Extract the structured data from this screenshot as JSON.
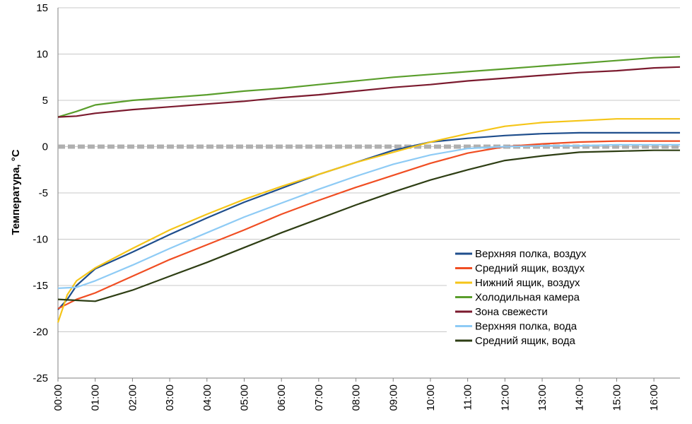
{
  "chart_data": {
    "type": "line",
    "ylabel": "Температура, °C",
    "ylim": [
      -25,
      15
    ],
    "yticks": [
      15,
      10,
      5,
      0,
      -5,
      -10,
      -15,
      -20,
      -25
    ],
    "xlim_hours": [
      0,
      16.7
    ],
    "xticks": [
      "00:00",
      "01:00",
      "02:00",
      "03:00",
      "04:00",
      "05:00",
      "06:00",
      "07:00",
      "08:00",
      "09:00",
      "10:00",
      "11:00",
      "12:00",
      "13:00",
      "14:00",
      "15:00",
      "16:00"
    ],
    "grid": true,
    "legend_position": "lower-right",
    "reference_line": {
      "y": 0,
      "color": "#b0b0b0"
    },
    "series": [
      {
        "name": "Верхняя полка, воздух",
        "color": "#1f4e8c",
        "points": [
          [
            0,
            -17.6
          ],
          [
            0.25,
            -16.5
          ],
          [
            0.5,
            -15
          ],
          [
            1,
            -13.2
          ],
          [
            2,
            -11.4
          ],
          [
            3,
            -9.5
          ],
          [
            4,
            -7.7
          ],
          [
            5,
            -6
          ],
          [
            6,
            -4.5
          ],
          [
            7,
            -3
          ],
          [
            8,
            -1.7
          ],
          [
            9,
            -0.4
          ],
          [
            10,
            0.5
          ],
          [
            11,
            0.9
          ],
          [
            12,
            1.2
          ],
          [
            13,
            1.4
          ],
          [
            14,
            1.5
          ],
          [
            15,
            1.5
          ],
          [
            16,
            1.5
          ],
          [
            16.7,
            1.5
          ]
        ]
      },
      {
        "name": "Средний ящик, воздух",
        "color": "#f04e23",
        "points": [
          [
            0,
            -17.5
          ],
          [
            0.25,
            -17
          ],
          [
            0.5,
            -16.5
          ],
          [
            1,
            -15.8
          ],
          [
            2,
            -14
          ],
          [
            3,
            -12.2
          ],
          [
            4,
            -10.6
          ],
          [
            5,
            -9
          ],
          [
            6,
            -7.3
          ],
          [
            7,
            -5.8
          ],
          [
            8,
            -4.4
          ],
          [
            9,
            -3.1
          ],
          [
            10,
            -1.8
          ],
          [
            11,
            -0.7
          ],
          [
            12,
            0
          ],
          [
            13,
            0.3
          ],
          [
            14,
            0.5
          ],
          [
            15,
            0.6
          ],
          [
            16,
            0.6
          ],
          [
            16.7,
            0.6
          ]
        ]
      },
      {
        "name": "Нижний ящик, воздух",
        "color": "#f5c518",
        "points": [
          [
            0,
            -19
          ],
          [
            0.25,
            -16
          ],
          [
            0.5,
            -14.5
          ],
          [
            1,
            -13.1
          ],
          [
            2,
            -11
          ],
          [
            3,
            -9
          ],
          [
            4,
            -7.3
          ],
          [
            5,
            -5.7
          ],
          [
            6,
            -4.3
          ],
          [
            7,
            -3
          ],
          [
            8,
            -1.7
          ],
          [
            9,
            -0.6
          ],
          [
            10,
            0.5
          ],
          [
            11,
            1.4
          ],
          [
            12,
            2.2
          ],
          [
            13,
            2.6
          ],
          [
            14,
            2.8
          ],
          [
            15,
            3
          ],
          [
            16,
            3
          ],
          [
            16.7,
            3
          ]
        ]
      },
      {
        "name": "Холодильная камера",
        "color": "#5a9e2c",
        "points": [
          [
            0,
            3.2
          ],
          [
            0.5,
            3.8
          ],
          [
            1,
            4.5
          ],
          [
            2,
            5
          ],
          [
            3,
            5.3
          ],
          [
            4,
            5.6
          ],
          [
            5,
            6
          ],
          [
            6,
            6.3
          ],
          [
            7,
            6.7
          ],
          [
            8,
            7.1
          ],
          [
            9,
            7.5
          ],
          [
            10,
            7.8
          ],
          [
            11,
            8.1
          ],
          [
            12,
            8.4
          ],
          [
            13,
            8.7
          ],
          [
            14,
            9
          ],
          [
            15,
            9.3
          ],
          [
            16,
            9.6
          ],
          [
            16.7,
            9.7
          ]
        ]
      },
      {
        "name": "Зона свежести",
        "color": "#7b1a2e",
        "points": [
          [
            0,
            3.2
          ],
          [
            0.5,
            3.3
          ],
          [
            1,
            3.6
          ],
          [
            2,
            4
          ],
          [
            3,
            4.3
          ],
          [
            4,
            4.6
          ],
          [
            5,
            4.9
          ],
          [
            6,
            5.3
          ],
          [
            7,
            5.6
          ],
          [
            8,
            6
          ],
          [
            9,
            6.4
          ],
          [
            10,
            6.7
          ],
          [
            11,
            7.1
          ],
          [
            12,
            7.4
          ],
          [
            13,
            7.7
          ],
          [
            14,
            8
          ],
          [
            15,
            8.2
          ],
          [
            16,
            8.5
          ],
          [
            16.7,
            8.6
          ]
        ]
      },
      {
        "name": "Верхняя полка, вода",
        "color": "#8ecbf5",
        "points": [
          [
            0,
            -15.3
          ],
          [
            0.5,
            -15.2
          ],
          [
            1,
            -14.5
          ],
          [
            2,
            -12.8
          ],
          [
            3,
            -11
          ],
          [
            4,
            -9.3
          ],
          [
            5,
            -7.6
          ],
          [
            6,
            -6.1
          ],
          [
            7,
            -4.6
          ],
          [
            8,
            -3.2
          ],
          [
            9,
            -1.9
          ],
          [
            10,
            -0.9
          ],
          [
            11,
            -0.2
          ],
          [
            12,
            0
          ],
          [
            13,
            0.1
          ],
          [
            14,
            0.1
          ],
          [
            15,
            0.2
          ],
          [
            16,
            0.2
          ],
          [
            16.7,
            0.2
          ]
        ]
      },
      {
        "name": "Средний ящик, вода",
        "color": "#2e3e14",
        "points": [
          [
            0,
            -16.5
          ],
          [
            0.5,
            -16.6
          ],
          [
            1,
            -16.7
          ],
          [
            2,
            -15.5
          ],
          [
            3,
            -14
          ],
          [
            4,
            -12.5
          ],
          [
            5,
            -10.9
          ],
          [
            6,
            -9.3
          ],
          [
            7,
            -7.8
          ],
          [
            8,
            -6.3
          ],
          [
            9,
            -4.9
          ],
          [
            10,
            -3.6
          ],
          [
            11,
            -2.5
          ],
          [
            12,
            -1.5
          ],
          [
            13,
            -1
          ],
          [
            14,
            -0.6
          ],
          [
            15,
            -0.5
          ],
          [
            16,
            -0.4
          ],
          [
            16.7,
            -0.4
          ]
        ]
      }
    ]
  }
}
